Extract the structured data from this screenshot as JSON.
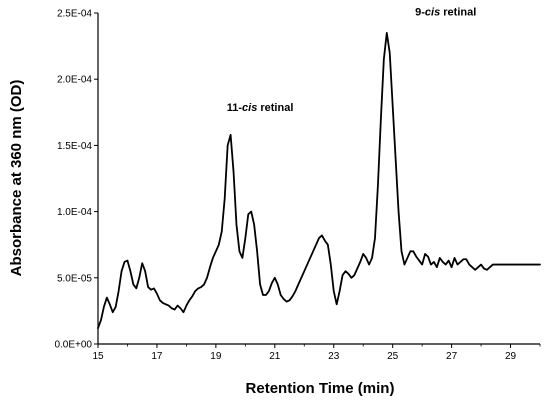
{
  "chart_data": {
    "type": "line",
    "xlabel": "Retention Time (min)",
    "ylabel": "Absorbance at 360 nm (OD)",
    "xlim": [
      15,
      30
    ],
    "ylim": [
      0,
      0.00025
    ],
    "x_ticks": [
      15,
      17,
      19,
      21,
      23,
      25,
      27,
      29
    ],
    "x_tick_labels": [
      "15",
      "17",
      "19",
      "21",
      "23",
      "25",
      "27",
      "29"
    ],
    "y_ticks": [
      0,
      5e-05,
      0.0001,
      0.00015,
      0.0002,
      0.00025
    ],
    "y_tick_labels": [
      "0.0E+00",
      "5.0E-05",
      "1.0E-04",
      "1.5E-04",
      "2.0E-04",
      "2.5E-04"
    ],
    "grid": false,
    "annotations": [
      {
        "prefix": "11-",
        "italic": "cis",
        "suffix": " retinal",
        "x": 20.5,
        "y": 0.000176
      },
      {
        "prefix": "9-",
        "italic": "cis",
        "suffix": " retinal",
        "x": 26.8,
        "y": 0.000248
      }
    ],
    "series": [
      {
        "color": "#000000",
        "x": [
          15.0,
          15.1,
          15.2,
          15.3,
          15.4,
          15.5,
          15.6,
          15.7,
          15.8,
          15.9,
          16.0,
          16.1,
          16.2,
          16.3,
          16.4,
          16.5,
          16.6,
          16.7,
          16.8,
          16.9,
          17.0,
          17.1,
          17.2,
          17.3,
          17.4,
          17.5,
          17.6,
          17.7,
          17.8,
          17.9,
          18.0,
          18.1,
          18.2,
          18.3,
          18.4,
          18.5,
          18.6,
          18.7,
          18.8,
          18.9,
          19.0,
          19.1,
          19.2,
          19.3,
          19.4,
          19.5,
          19.6,
          19.7,
          19.8,
          19.9,
          20.0,
          20.1,
          20.2,
          20.3,
          20.4,
          20.5,
          20.6,
          20.7,
          20.8,
          20.9,
          21.0,
          21.1,
          21.2,
          21.3,
          21.4,
          21.5,
          21.6,
          21.7,
          21.8,
          21.9,
          22.0,
          22.1,
          22.2,
          22.3,
          22.4,
          22.5,
          22.6,
          22.7,
          22.8,
          22.9,
          23.0,
          23.1,
          23.2,
          23.3,
          23.4,
          23.5,
          23.6,
          23.7,
          23.8,
          23.9,
          24.0,
          24.1,
          24.2,
          24.3,
          24.4,
          24.5,
          24.6,
          24.7,
          24.8,
          24.9,
          25.0,
          25.1,
          25.2,
          25.3,
          25.4,
          25.5,
          25.6,
          25.7,
          25.8,
          25.9,
          26.0,
          26.1,
          26.2,
          26.3,
          26.4,
          26.5,
          26.6,
          26.7,
          26.8,
          26.9,
          27.0,
          27.1,
          27.2,
          27.3,
          27.4,
          27.5,
          27.6,
          27.7,
          27.8,
          27.9,
          28.0,
          28.1,
          28.2,
          28.3,
          28.4,
          28.5,
          28.6,
          28.7,
          28.8,
          28.9,
          29.0,
          29.1,
          29.2,
          29.3,
          29.4,
          29.5,
          29.6,
          29.7,
          29.8,
          29.9,
          30.0
        ],
        "y": [
          1.2e-05,
          1.8e-05,
          2.8e-05,
          3.5e-05,
          3e-05,
          2.4e-05,
          2.8e-05,
          4e-05,
          5.5e-05,
          6.2e-05,
          6.3e-05,
          5.5e-05,
          4.5e-05,
          4.2e-05,
          5e-05,
          6.1e-05,
          5.5e-05,
          4.3e-05,
          4.1e-05,
          4.2e-05,
          3.8e-05,
          3.3e-05,
          3.1e-05,
          3e-05,
          2.9e-05,
          2.7e-05,
          2.6e-05,
          2.9e-05,
          2.7e-05,
          2.4e-05,
          2.9e-05,
          3.3e-05,
          3.6e-05,
          4e-05,
          4.2e-05,
          4.3e-05,
          4.5e-05,
          5e-05,
          5.8e-05,
          6.5e-05,
          7e-05,
          7.5e-05,
          8.5e-05,
          0.00011,
          0.00015,
          0.000158,
          0.00013,
          9e-05,
          7e-05,
          6.5e-05,
          8e-05,
          9.8e-05,
          0.0001,
          9e-05,
          7e-05,
          4.5e-05,
          3.7e-05,
          3.7e-05,
          4e-05,
          4.6e-05,
          5e-05,
          4.5e-05,
          3.7e-05,
          3.4e-05,
          3.2e-05,
          3.3e-05,
          3.6e-05,
          4e-05,
          4.5e-05,
          5e-05,
          5.5e-05,
          6e-05,
          6.5e-05,
          7e-05,
          7.5e-05,
          8e-05,
          8.2e-05,
          7.8e-05,
          7.5e-05,
          6e-05,
          4e-05,
          3e-05,
          4e-05,
          5.2e-05,
          5.5e-05,
          5.3e-05,
          5e-05,
          5.2e-05,
          5.7e-05,
          6.2e-05,
          6.8e-05,
          6.5e-05,
          6e-05,
          6.5e-05,
          8e-05,
          0.00012,
          0.00017,
          0.000215,
          0.000235,
          0.00022,
          0.00018,
          0.00014,
          0.0001,
          7e-05,
          6e-05,
          6.5e-05,
          7e-05,
          7e-05,
          6.6e-05,
          6.3e-05,
          6e-05,
          6.8e-05,
          6.6e-05,
          6e-05,
          6.2e-05,
          5.8e-05,
          6.5e-05,
          6.2e-05,
          6e-05,
          6.3e-05,
          5.8e-05,
          6.5e-05,
          6e-05,
          6.2e-05,
          6.4e-05,
          6.4e-05,
          6e-05,
          5.8e-05,
          5.6e-05,
          5.8e-05,
          6e-05,
          5.7e-05,
          5.6e-05,
          5.8e-05,
          6e-05,
          6e-05,
          6e-05,
          6e-05,
          6e-05,
          6e-05,
          6e-05,
          6e-05,
          6e-05,
          6e-05,
          6e-05,
          6e-05,
          6e-05,
          6e-05,
          6e-05,
          6e-05,
          6e-05
        ]
      }
    ]
  }
}
